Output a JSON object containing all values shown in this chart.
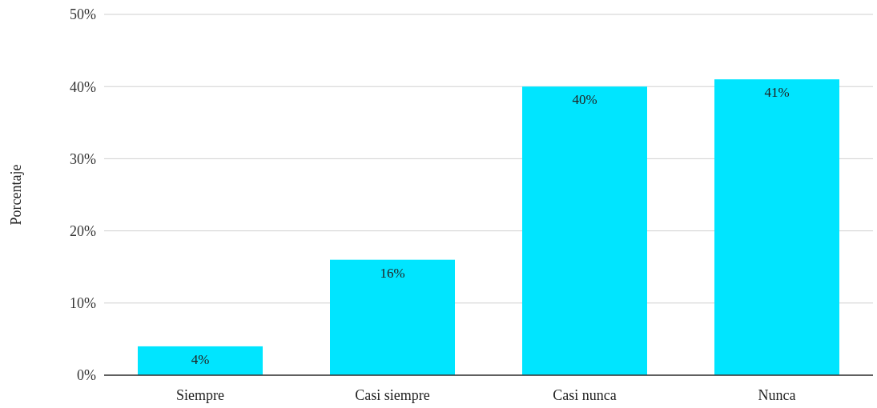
{
  "chart_data": {
    "type": "bar",
    "ylabel": "Porcentaje",
    "categories": [
      "Siempre",
      "Casi siempre",
      "Casi nunca",
      "Nunca"
    ],
    "values": [
      4,
      16,
      40,
      41
    ],
    "value_labels": [
      "4%",
      "16%",
      "40%",
      "41%"
    ],
    "color": "#00e5ff",
    "grid": "y",
    "ylim": [
      0,
      50
    ],
    "yticks": [
      {
        "value": 0,
        "label": "0%"
      },
      {
        "value": 10,
        "label": "10%"
      },
      {
        "value": 20,
        "label": "20%"
      },
      {
        "value": 30,
        "label": "30%"
      },
      {
        "value": 40,
        "label": "40%"
      },
      {
        "value": 50,
        "label": "50%"
      }
    ]
  }
}
